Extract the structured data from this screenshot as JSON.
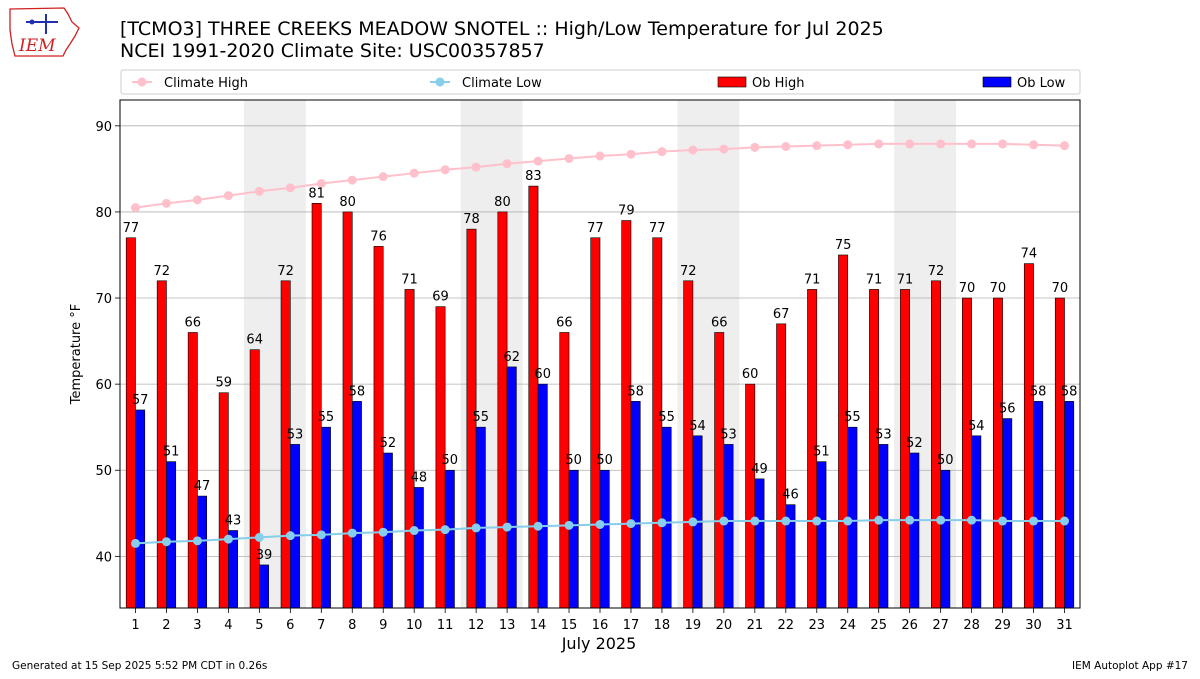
{
  "header": {
    "title_line1": "[TCMO3] THREE CREEKS MEADOW SNOTEL :: High/Low Temperature for Jul 2025",
    "title_line2": "NCEI 1991-2020 Climate Site: USC00357857",
    "logo_text": "IEM"
  },
  "footer": {
    "generated": "Generated at 15 Sep 2025 5:52 PM CDT in 0.26s",
    "app": "IEM Autoplot App #17"
  },
  "colors": {
    "ob_high": "#ff0000",
    "ob_low": "#0000ff",
    "climate_high": "#ffc0cb",
    "climate_low": "#87ceeb",
    "weekend_shade": "#eeeeee",
    "grid": "#b0b0b0"
  },
  "chart_data": {
    "type": "bar",
    "title": "[TCMO3] THREE CREEKS MEADOW SNOTEL :: High/Low Temperature for Jul 2025",
    "subtitle": "NCEI 1991-2020 Climate Site: USC00357857",
    "xlabel": "July 2025",
    "ylabel": "Temperature °F",
    "ylim": [
      34,
      93
    ],
    "yticks": [
      40,
      50,
      60,
      70,
      80,
      90
    ],
    "grid": true,
    "legend_position": "top",
    "categories": [
      "1",
      "2",
      "3",
      "4",
      "5",
      "6",
      "7",
      "8",
      "9",
      "10",
      "11",
      "12",
      "13",
      "14",
      "15",
      "16",
      "17",
      "18",
      "19",
      "20",
      "21",
      "22",
      "23",
      "24",
      "25",
      "26",
      "27",
      "28",
      "29",
      "30",
      "31"
    ],
    "shaded_day_ranges": [
      [
        5,
        6
      ],
      [
        12,
        13
      ],
      [
        19,
        20
      ],
      [
        26,
        27
      ]
    ],
    "series": [
      {
        "name": "Ob High",
        "kind": "bar",
        "values": [
          77,
          72,
          66,
          59,
          64,
          72,
          81,
          80,
          76,
          71,
          69,
          78,
          80,
          83,
          66,
          77,
          79,
          77,
          72,
          66,
          60,
          67,
          71,
          75,
          71,
          71,
          72,
          70,
          70,
          74,
          70
        ],
        "labels": [
          "77",
          "72",
          "66",
          "59",
          "64",
          "72",
          "81",
          "80",
          "76",
          "71",
          "69",
          "78",
          "80",
          "83",
          "66",
          "77",
          "79",
          "77",
          "72",
          "66",
          "60",
          "67",
          "71",
          "75",
          "71",
          "71",
          "72",
          "70",
          "70",
          "74",
          "70"
        ]
      },
      {
        "name": "Ob Low",
        "kind": "bar",
        "values": [
          57,
          51,
          47,
          43,
          39,
          53,
          55,
          58,
          52,
          48,
          50,
          55,
          62,
          60,
          50,
          50,
          58,
          55,
          54,
          53,
          49,
          46,
          51,
          55,
          53,
          52,
          50,
          54,
          56,
          58,
          58
        ],
        "labels": [
          "57",
          "51",
          "47",
          "43",
          "39",
          "53",
          "55",
          "58",
          "52",
          "48",
          "50",
          "55",
          "62",
          "60",
          "50",
          "50",
          "58",
          "55",
          "54",
          "53",
          "49",
          "46",
          "51",
          "55",
          "53",
          "52",
          "50",
          "54",
          "56",
          "58",
          "58"
        ]
      },
      {
        "name": "Climate High",
        "kind": "line",
        "values": [
          80.5,
          81.0,
          81.4,
          81.9,
          82.4,
          82.8,
          83.3,
          83.7,
          84.1,
          84.5,
          84.9,
          85.2,
          85.6,
          85.9,
          86.2,
          86.5,
          86.7,
          87.0,
          87.2,
          87.3,
          87.5,
          87.6,
          87.7,
          87.8,
          87.9,
          87.9,
          87.9,
          87.9,
          87.9,
          87.8,
          87.7
        ]
      },
      {
        "name": "Climate Low",
        "kind": "line",
        "values": [
          41.5,
          41.7,
          41.8,
          42.0,
          42.2,
          42.4,
          42.5,
          42.7,
          42.8,
          43.0,
          43.1,
          43.3,
          43.4,
          43.5,
          43.6,
          43.7,
          43.8,
          43.9,
          44.0,
          44.1,
          44.1,
          44.1,
          44.1,
          44.1,
          44.2,
          44.2,
          44.2,
          44.2,
          44.1,
          44.1,
          44.1
        ]
      }
    ],
    "legend": [
      "Climate High",
      "Climate Low",
      "Ob High",
      "Ob Low"
    ]
  }
}
